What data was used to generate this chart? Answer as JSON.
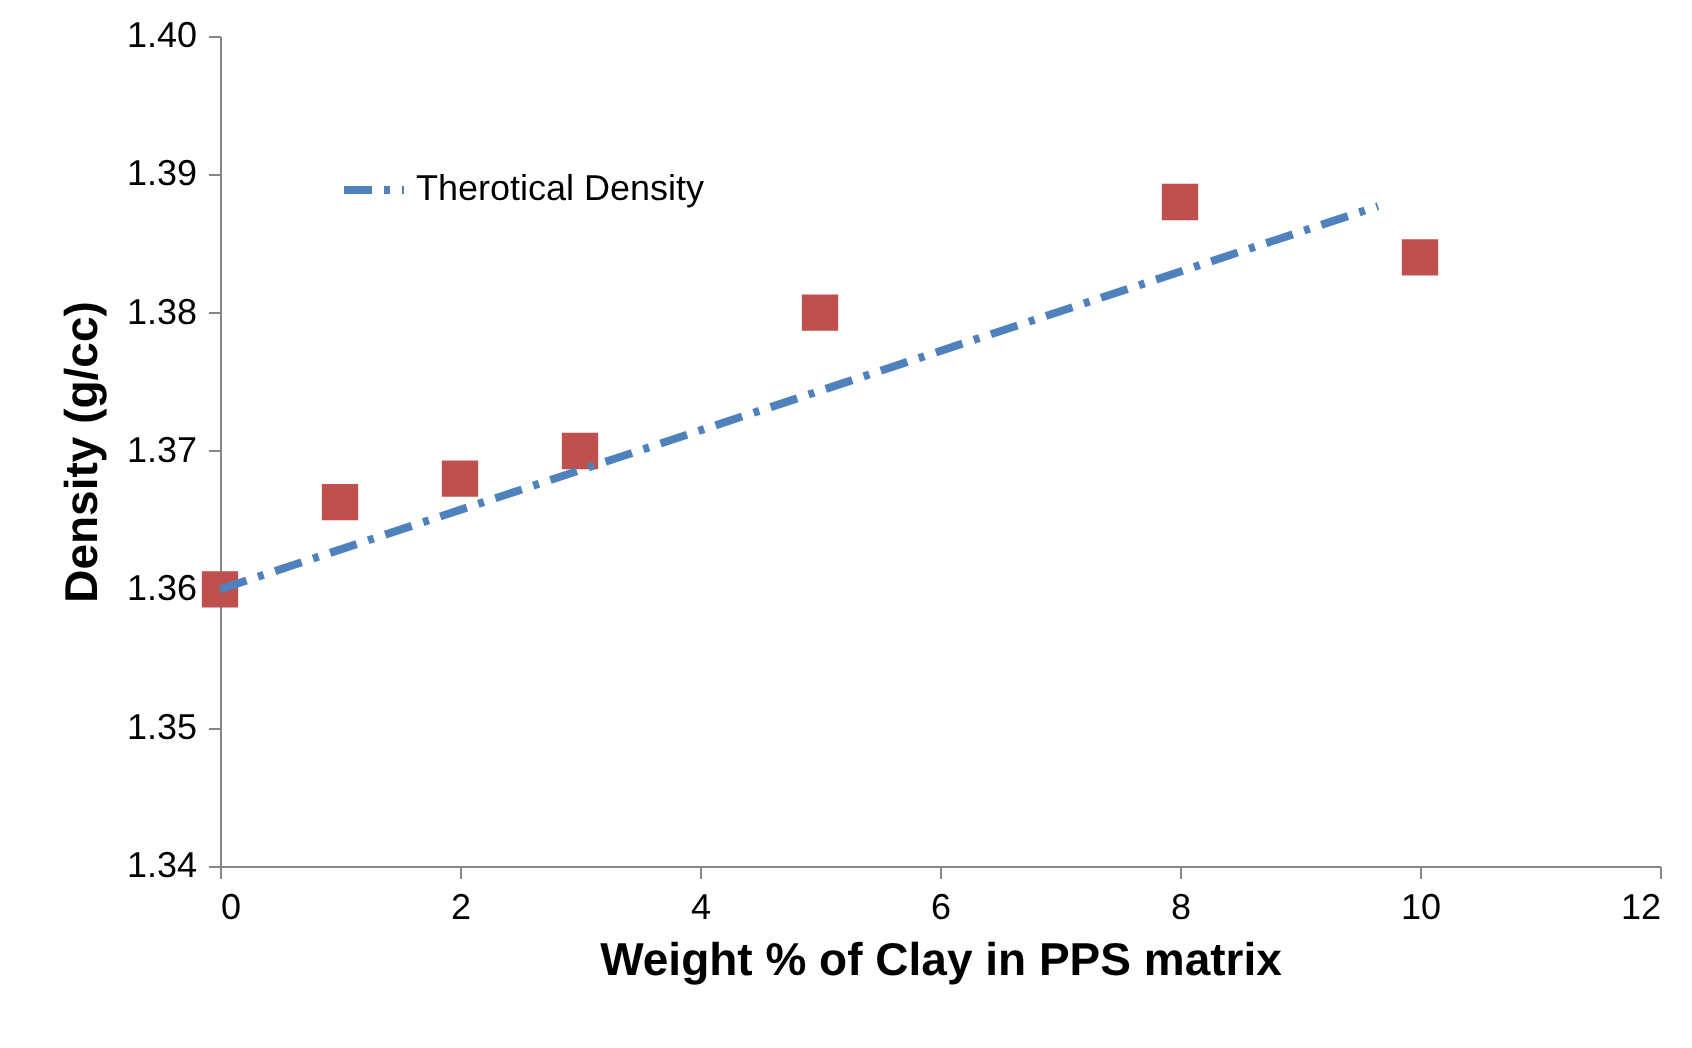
{
  "chart_data": {
    "type": "scatter",
    "xlabel": "Weight % of Clay in PPS matrix",
    "ylabel": "Density (g/cc)",
    "xlim": [
      0,
      12
    ],
    "xticks": [
      0,
      2,
      4,
      6,
      8,
      10,
      12
    ],
    "ylim": [
      1.34,
      1.4
    ],
    "yticks": [
      1.34,
      1.35,
      1.36,
      1.37,
      1.38,
      1.39,
      {
        "value": 1.4,
        "label": "1.40"
      }
    ],
    "grid": false,
    "legend": "top left",
    "marker": "square",
    "series": [
      {
        "color": "#c0504d",
        "x": [
          0,
          1,
          2,
          3,
          5,
          8,
          10
        ],
        "values": [
          1.36,
          1.3663,
          1.368,
          1.37,
          1.38,
          1.388,
          1.384
        ]
      },
      {
        "type": "line",
        "name": "Therotical Density",
        "color": "#4f81bd",
        "line_style": "dashed",
        "marker": "none",
        "x": [
          0,
          9.65
        ],
        "values": [
          1.36,
          1.3877
        ]
      }
    ]
  }
}
